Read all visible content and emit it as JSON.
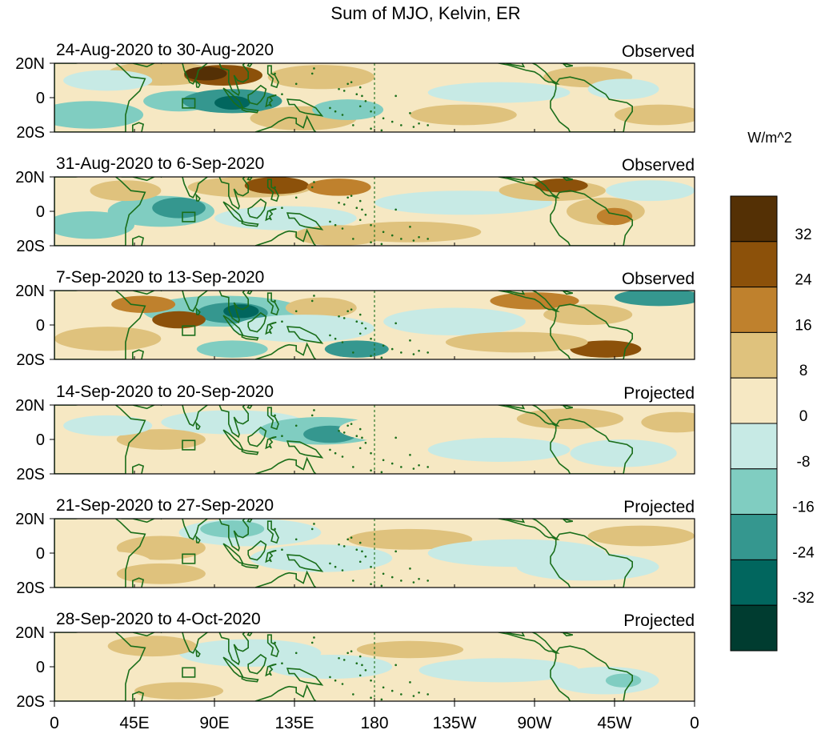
{
  "figure": {
    "title": "Sum of MJO, Kelvin, ER",
    "y_tick_labels": [
      "20N",
      "0",
      "20S"
    ],
    "x_tick_labels": [
      "0",
      "45E",
      "90E",
      "135E",
      "180",
      "135W",
      "90W",
      "45W",
      "0"
    ],
    "colorbar": {
      "unit_label": "W/m^2",
      "tick_labels": [
        "32",
        "24",
        "16",
        "8",
        "0",
        "-8",
        "-16",
        "-24",
        "-32"
      ],
      "colors_top_to_bottom": [
        "#543005",
        "#8c510a",
        "#bf812d",
        "#dfc27d",
        "#f6e8c3",
        "#c7eae5",
        "#80cdc1",
        "#35978f",
        "#01665e",
        "#003c30"
      ]
    },
    "coastline_color": "#1a6e1a",
    "panels": [
      {
        "period": "24-Aug-2020 to 30-Aug-2020",
        "status": "Observed"
      },
      {
        "period": "31-Aug-2020 to 6-Sep-2020",
        "status": "Observed"
      },
      {
        "period": "7-Sep-2020 to 13-Sep-2020",
        "status": "Observed"
      },
      {
        "period": "14-Sep-2020 to 20-Sep-2020",
        "status": "Projected"
      },
      {
        "period": "21-Sep-2020 to 27-Sep-2020",
        "status": "Projected"
      },
      {
        "period": "28-Sep-2020 to 4-Oct-2020",
        "status": "Projected"
      }
    ]
  }
}
